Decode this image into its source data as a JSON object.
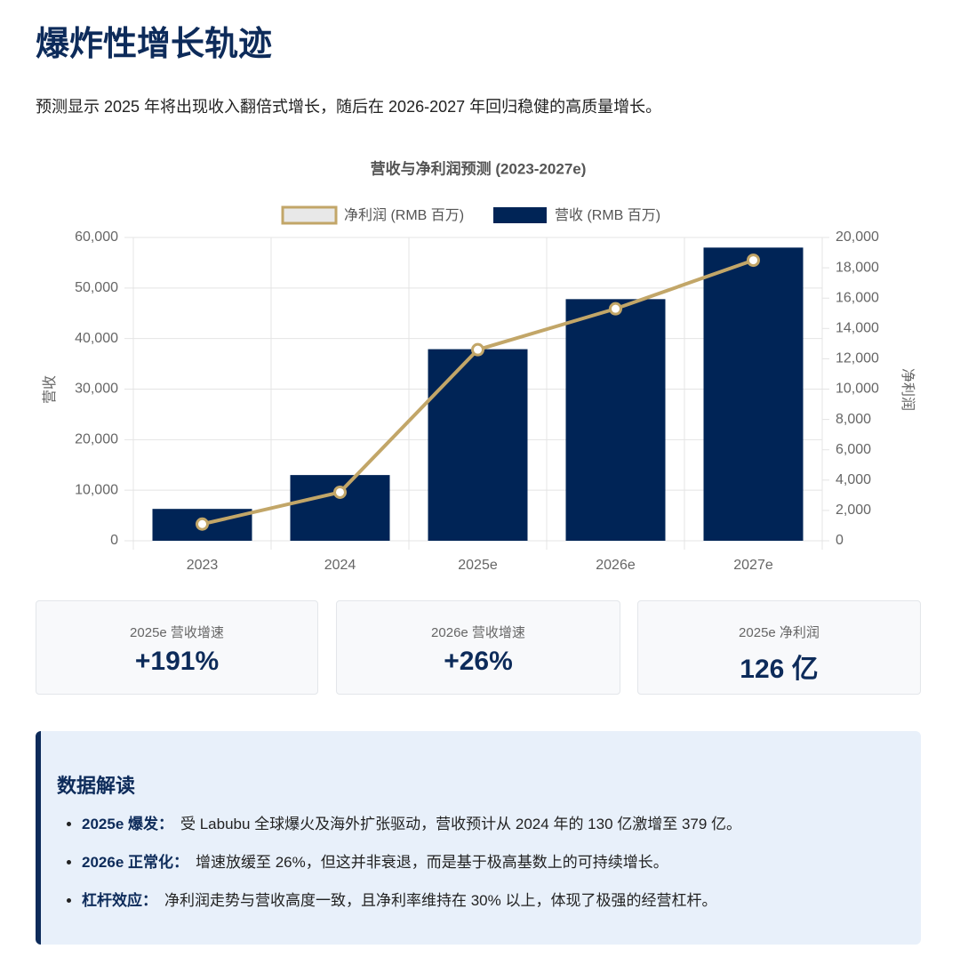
{
  "header": {
    "title": "爆炸性增长轨迹",
    "subtitle": "预测显示 2025 年将出现收入翻倍式增长，随后在 2026-2027 年回归稳健的高质量增长。"
  },
  "chart_data": {
    "type": "bar",
    "title": "营收与净利润预测 (2023-2027e)",
    "categories": [
      "2023",
      "2024",
      "2025e",
      "2026e",
      "2027e"
    ],
    "series": [
      {
        "name": "净利润 (RMB 百万)",
        "type": "line",
        "color": "#c2a668",
        "axis": "y2",
        "values": [
          1100,
          3200,
          12600,
          15300,
          18500
        ]
      },
      {
        "name": "营收 (RMB 百万)",
        "type": "bar",
        "color": "#002456",
        "values": [
          6300,
          13000,
          37900,
          47800,
          58000
        ]
      }
    ],
    "y_label": "营收",
    "y2_label": "净利润",
    "ylim": [
      0,
      60000
    ],
    "yticks": [
      0,
      {
        "value": 10000,
        "label": "10,000"
      },
      {
        "value": 20000,
        "label": "20,000"
      },
      {
        "value": 30000,
        "label": "30,000"
      },
      {
        "value": 40000,
        "label": "40,000"
      },
      {
        "value": 50000,
        "label": "50,000"
      },
      {
        "value": 60000,
        "label": "60,000"
      }
    ],
    "y2lim": [
      0,
      20000
    ],
    "y2ticks": [
      0,
      {
        "value": 2000,
        "label": "2,000"
      },
      {
        "value": 4000,
        "label": "4,000"
      },
      {
        "value": 6000,
        "label": "6,000"
      },
      {
        "value": 8000,
        "label": "8,000"
      },
      {
        "value": 10000,
        "label": "10,000"
      },
      {
        "value": 12000,
        "label": "12,000"
      },
      {
        "value": 14000,
        "label": "14,000"
      },
      {
        "value": 16000,
        "label": "16,000"
      },
      {
        "value": 18000,
        "label": "18,000"
      },
      {
        "value": 20000,
        "label": "20,000"
      }
    ],
    "grid": true,
    "legend": "top"
  },
  "cards": [
    {
      "label": "2025e 营收增速",
      "value": "+191%"
    },
    {
      "label": "2026e 营收增速",
      "value": "+26%"
    },
    {
      "label": "2025e 净利润",
      "value": "126 亿"
    }
  ],
  "interpretation": {
    "title": "数据解读",
    "items": [
      {
        "label": "2025e 爆发：",
        "text": "受 Labubu 全球爆火及海外扩张驱动，营收预计从 2024 年的 130 亿激增至 379 亿。"
      },
      {
        "label": "2026e 正常化：",
        "text": "增速放缓至 26%，但这并非衰退，而是基于极高基数上的可持续增长。"
      },
      {
        "label": "杠杆效应：",
        "text": "净利润走势与营收高度一致，且净利率维持在 30% 以上，体现了极强的经营杠杆。"
      }
    ]
  }
}
